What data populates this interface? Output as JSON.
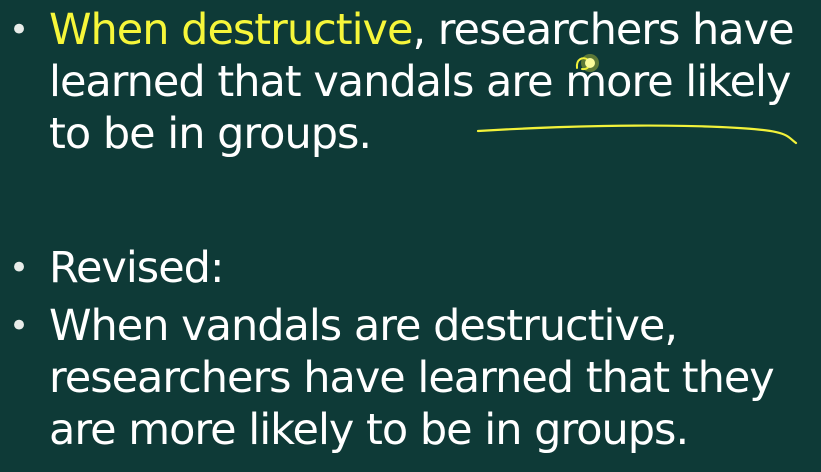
{
  "bullets": [
    {
      "highlight": "When destructive",
      "line1_rest": ", researchers have",
      "line2": "learned that vandals are more likely",
      "line3": "to be in groups."
    },
    {
      "line1": "Revised:"
    },
    {
      "line1": "When vandals are destructive,",
      "line2": "researchers have learned that they",
      "line3": "are more likely to be in groups."
    }
  ],
  "bullet_glyph": "•",
  "colors": {
    "background": "#0e3a37",
    "text": "#ffffff",
    "highlight": "#f6f63a",
    "ink": "#f2f23a"
  }
}
